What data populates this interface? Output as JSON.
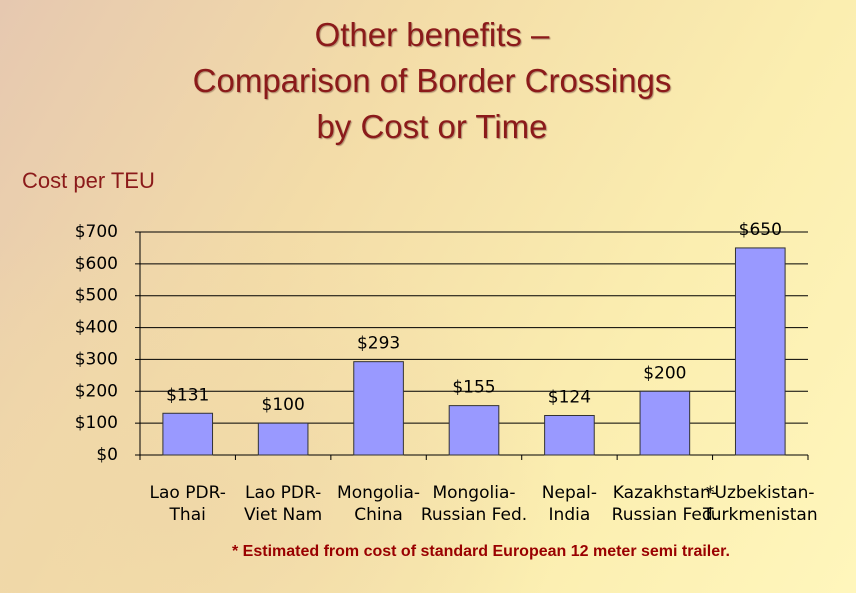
{
  "chart_data": {
    "type": "bar",
    "title": "Other benefits –\nComparison of Border Crossings\nby Cost or Time",
    "subtitle": "Cost per TEU",
    "footnote": "*  Estimated from cost of standard European 12 meter semi trailer.",
    "categories": [
      "Lao PDR-\nThai",
      "Lao PDR-\nViet Nam",
      "Mongolia-\nChina",
      "Mongolia-\nRussian Fed.",
      "Nepal-\nIndia",
      "Kazakhstan-\nRussian Fed.",
      "*Uzbekistan-\nTurkmenistan"
    ],
    "values": [
      131,
      100,
      293,
      155,
      124,
      200,
      650
    ],
    "value_labels": [
      "$131",
      "$100",
      "$293",
      "$155",
      "$124",
      "$200",
      "$650"
    ],
    "color": "#9999ff",
    "ylim": [
      0,
      700
    ],
    "yticks": [
      {
        "value": 0,
        "label": "$0"
      },
      {
        "value": 100,
        "label": "$100"
      },
      {
        "value": 200,
        "label": "$200"
      },
      {
        "value": 300,
        "label": "$300"
      },
      {
        "value": 400,
        "label": "$400"
      },
      {
        "value": 500,
        "label": "$500"
      },
      {
        "value": 600,
        "label": "$600"
      },
      {
        "value": 700,
        "label": "$700"
      }
    ],
    "grid": true
  }
}
